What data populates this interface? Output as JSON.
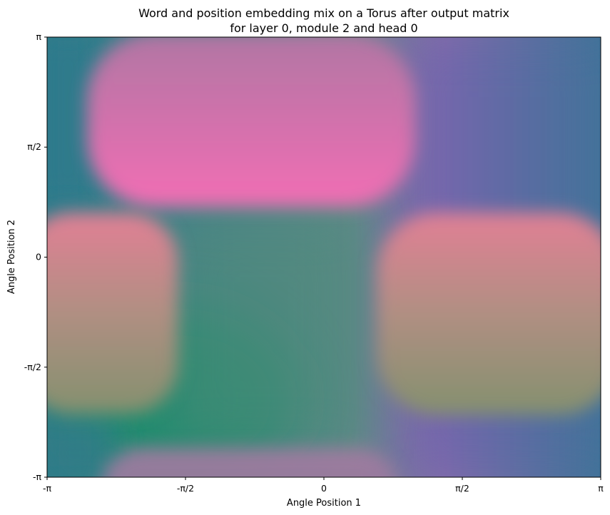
{
  "chart_data": {
    "type": "heatmap",
    "title_line1": "Word and position embedding mix on a Torus after output matrix",
    "title_line2": "for layer 0, module 2 and head 0",
    "xlabel": "Angle Position 1",
    "ylabel": "Angle Position 2",
    "xlim": [
      -3.14159,
      3.14159
    ],
    "ylim": [
      -3.14159,
      3.14159
    ],
    "xticks": [
      {
        "value": -3.14159,
        "label": "-π"
      },
      {
        "value": -1.5708,
        "label": "-π/2"
      },
      {
        "value": 0,
        "label": "0"
      },
      {
        "value": 1.5708,
        "label": "π/2"
      },
      {
        "value": 3.14159,
        "label": "π"
      }
    ],
    "yticks": [
      {
        "value": 3.14159,
        "label": "π"
      },
      {
        "value": 1.5708,
        "label": "π/2"
      },
      {
        "value": 0,
        "label": "0"
      },
      {
        "value": -1.5708,
        "label": "-π/2"
      },
      {
        "value": -3.14159,
        "label": "-π"
      }
    ],
    "grid": false,
    "colors": {
      "teal_blue": "#3f7398",
      "pink": "#f26db4",
      "salmon": "#e27f95",
      "olive": "#8a906d",
      "green": "#1d8d6c",
      "purple": "#7b62b2",
      "slate": "#5a7890"
    }
  }
}
